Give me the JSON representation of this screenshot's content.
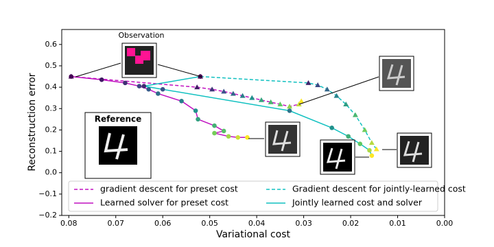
{
  "chart_data": {
    "type": "line",
    "xlabel": "Variational cost",
    "ylabel": "Reconstruction error",
    "xlim": [
      0.0815,
      0
    ],
    "ylim": [
      -0.2,
      0.67
    ],
    "xticks": [
      0.08,
      0.07,
      0.06,
      0.05,
      0.04,
      0.03,
      0.02,
      0.01,
      {
        "value": 0,
        "label": "0.00"
      }
    ],
    "yticks": [
      {
        "value": -0.2,
        "label": "−0.2"
      },
      {
        "value": -0.1,
        "label": "−0.1"
      },
      {
        "value": 0,
        "label": "0.0"
      },
      0.1,
      0.2,
      0.3,
      0.4,
      0.5,
      0.6
    ],
    "marker_colormap": "viridis",
    "legend": "lower center",
    "annotations": {
      "observation": "Observation",
      "reference": "Reference"
    },
    "series": [
      {
        "name": "gradient descent for preset cost",
        "color": "#c010c0",
        "dash": true,
        "marker": "triangle",
        "x": [
          0.0795,
          0.0527,
          0.0495,
          0.047,
          0.045,
          0.043,
          0.041,
          0.039,
          0.037,
          0.035,
          0.033,
          0.031,
          0.0305
        ],
        "values": [
          0.45,
          0.4,
          0.39,
          0.38,
          0.37,
          0.36,
          0.35,
          0.34,
          0.33,
          0.32,
          0.31,
          0.32,
          0.335
        ]
      },
      {
        "name": "Learned solver for preset cost",
        "color": "#c010c0",
        "dash": false,
        "marker": "circle",
        "x": [
          0.0795,
          0.073,
          0.068,
          0.065,
          0.063,
          0.061,
          0.056,
          0.053,
          0.0525,
          0.049,
          0.047,
          0.049,
          0.046,
          0.044,
          0.042
        ],
        "values": [
          0.45,
          0.435,
          0.42,
          0.405,
          0.39,
          0.37,
          0.335,
          0.29,
          0.25,
          0.22,
          0.195,
          0.185,
          0.17,
          0.165,
          0.165
        ]
      },
      {
        "name": "Gradient descent for jointly-learned cost",
        "color": "#10c0c0",
        "dash": true,
        "marker": "triangle",
        "x": [
          0.052,
          0.029,
          0.027,
          0.025,
          0.023,
          0.021,
          0.019,
          0.017,
          0.0155,
          0.0145
        ],
        "values": [
          0.45,
          0.42,
          0.41,
          0.39,
          0.36,
          0.32,
          0.27,
          0.2,
          0.14,
          0.11
        ]
      },
      {
        "name": "Jointly learned cost and solver",
        "color": "#10c0c0",
        "dash": false,
        "marker": "circle",
        "x": [
          0.052,
          0.064,
          0.06,
          0.033,
          0.024,
          0.0205,
          0.018,
          0.016,
          0.0155
        ],
        "values": [
          0.45,
          0.405,
          0.39,
          0.29,
          0.21,
          0.17,
          0.135,
          0.105,
          0.08
        ]
      }
    ]
  }
}
